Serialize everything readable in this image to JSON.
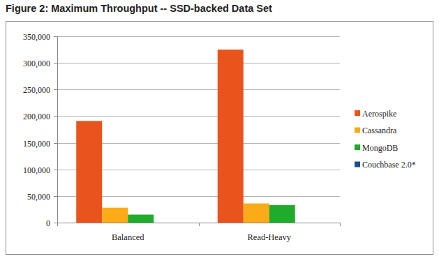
{
  "chart_data": {
    "type": "bar",
    "title": "Figure 2: Maximum Throughput -- SSD-backed Data Set",
    "categories": [
      "Balanced",
      "Read-Heavy"
    ],
    "series": [
      {
        "name": "Aerospike",
        "color": "#e8541c",
        "values": [
          191000,
          325000
        ]
      },
      {
        "name": "Cassandra",
        "color": "#fbab18",
        "values": [
          28000,
          36000
        ]
      },
      {
        "name": "MongoDB",
        "color": "#1fab2c",
        "values": [
          15000,
          33000
        ]
      },
      {
        "name": "Couchbase 2.0*",
        "color": "#1b4e8c",
        "values": [
          null,
          null
        ]
      }
    ],
    "ylim": [
      0,
      350000
    ],
    "yticks": [
      0,
      {
        "value": 50000,
        "label": "50,000"
      },
      {
        "value": 100000,
        "label": "100,000"
      },
      {
        "value": 150000,
        "label": "150,000"
      },
      {
        "value": 200000,
        "label": "200,000"
      },
      {
        "value": 250000,
        "label": "250,000"
      },
      {
        "value": 300000,
        "label": "300,000"
      },
      {
        "value": 350000,
        "label": "350,000"
      }
    ],
    "grid": true,
    "legend": "right"
  }
}
